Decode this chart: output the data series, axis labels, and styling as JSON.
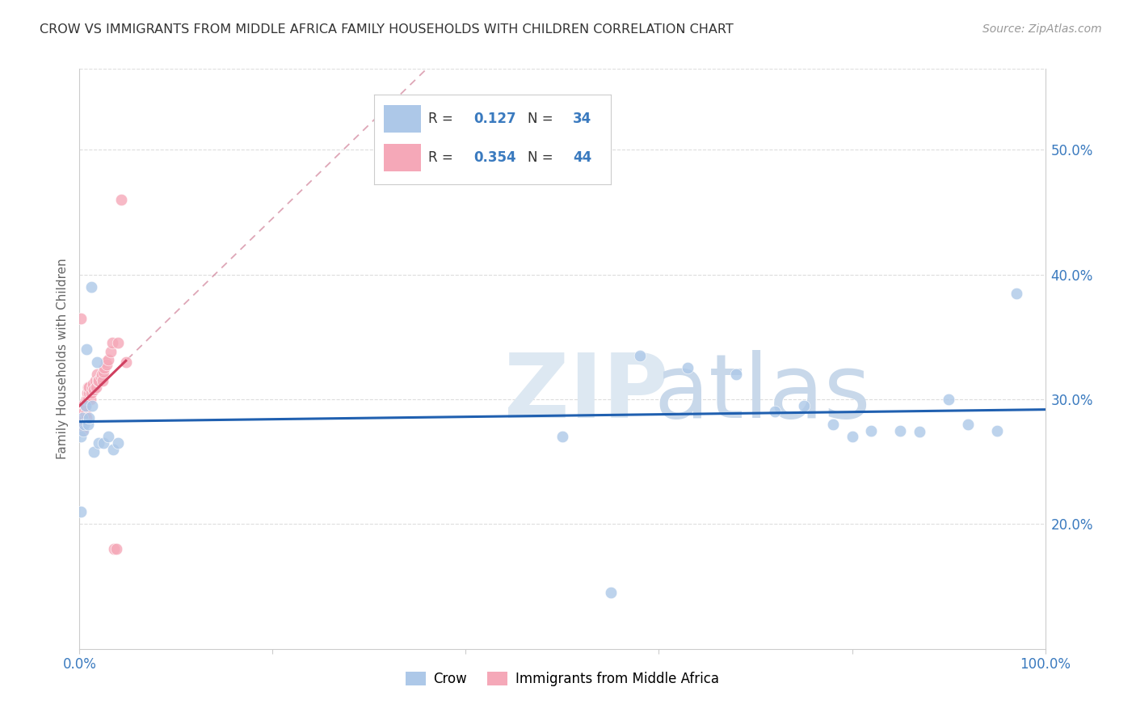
{
  "title": "CROW VS IMMIGRANTS FROM MIDDLE AFRICA FAMILY HOUSEHOLDS WITH CHILDREN CORRELATION CHART",
  "source": "Source: ZipAtlas.com",
  "ylabel": "Family Households with Children",
  "yticks": [
    "20.0%",
    "30.0%",
    "40.0%",
    "50.0%"
  ],
  "ytick_vals": [
    0.2,
    0.3,
    0.4,
    0.5
  ],
  "legend_label1": "Crow",
  "legend_label2": "Immigrants from Middle Africa",
  "r1": 0.127,
  "n1": 34,
  "r2": 0.354,
  "n2": 44,
  "color_blue": "#adc8e8",
  "color_pink": "#f5a8b8",
  "line_blue": "#2060b0",
  "line_pink": "#d04060",
  "line_dashed_color": "#d08098",
  "crow_x": [
    0.001,
    0.001,
    0.003,
    0.004,
    0.005,
    0.006,
    0.007,
    0.009,
    0.01,
    0.012,
    0.013,
    0.015,
    0.018,
    0.02,
    0.025,
    0.03,
    0.035,
    0.04,
    0.5,
    0.55,
    0.58,
    0.63,
    0.68,
    0.72,
    0.75,
    0.78,
    0.8,
    0.82,
    0.85,
    0.87,
    0.9,
    0.92,
    0.95,
    0.97
  ],
  "crow_y": [
    0.27,
    0.21,
    0.285,
    0.275,
    0.28,
    0.295,
    0.34,
    0.28,
    0.285,
    0.39,
    0.295,
    0.258,
    0.33,
    0.265,
    0.265,
    0.27,
    0.26,
    0.265,
    0.27,
    0.145,
    0.335,
    0.325,
    0.32,
    0.29,
    0.295,
    0.28,
    0.27,
    0.275,
    0.275,
    0.274,
    0.3,
    0.28,
    0.275,
    0.385
  ],
  "immig_x": [
    0.001,
    0.001,
    0.002,
    0.002,
    0.003,
    0.003,
    0.004,
    0.004,
    0.005,
    0.005,
    0.006,
    0.006,
    0.007,
    0.007,
    0.008,
    0.009,
    0.009,
    0.01,
    0.01,
    0.011,
    0.012,
    0.013,
    0.014,
    0.015,
    0.016,
    0.017,
    0.018,
    0.019,
    0.02,
    0.022,
    0.023,
    0.024,
    0.025,
    0.026,
    0.027,
    0.028,
    0.03,
    0.032,
    0.034,
    0.036,
    0.038,
    0.04,
    0.043,
    0.048
  ],
  "immig_y": [
    0.285,
    0.365,
    0.28,
    0.285,
    0.275,
    0.29,
    0.285,
    0.295,
    0.29,
    0.296,
    0.288,
    0.295,
    0.285,
    0.3,
    0.305,
    0.3,
    0.31,
    0.305,
    0.31,
    0.3,
    0.305,
    0.31,
    0.312,
    0.308,
    0.315,
    0.31,
    0.32,
    0.315,
    0.315,
    0.318,
    0.32,
    0.315,
    0.322,
    0.325,
    0.33,
    0.328,
    0.332,
    0.338,
    0.345,
    0.18,
    0.18,
    0.345,
    0.46,
    0.33
  ],
  "xlim": [
    0.0,
    1.0
  ],
  "ylim": [
    0.1,
    0.565
  ]
}
